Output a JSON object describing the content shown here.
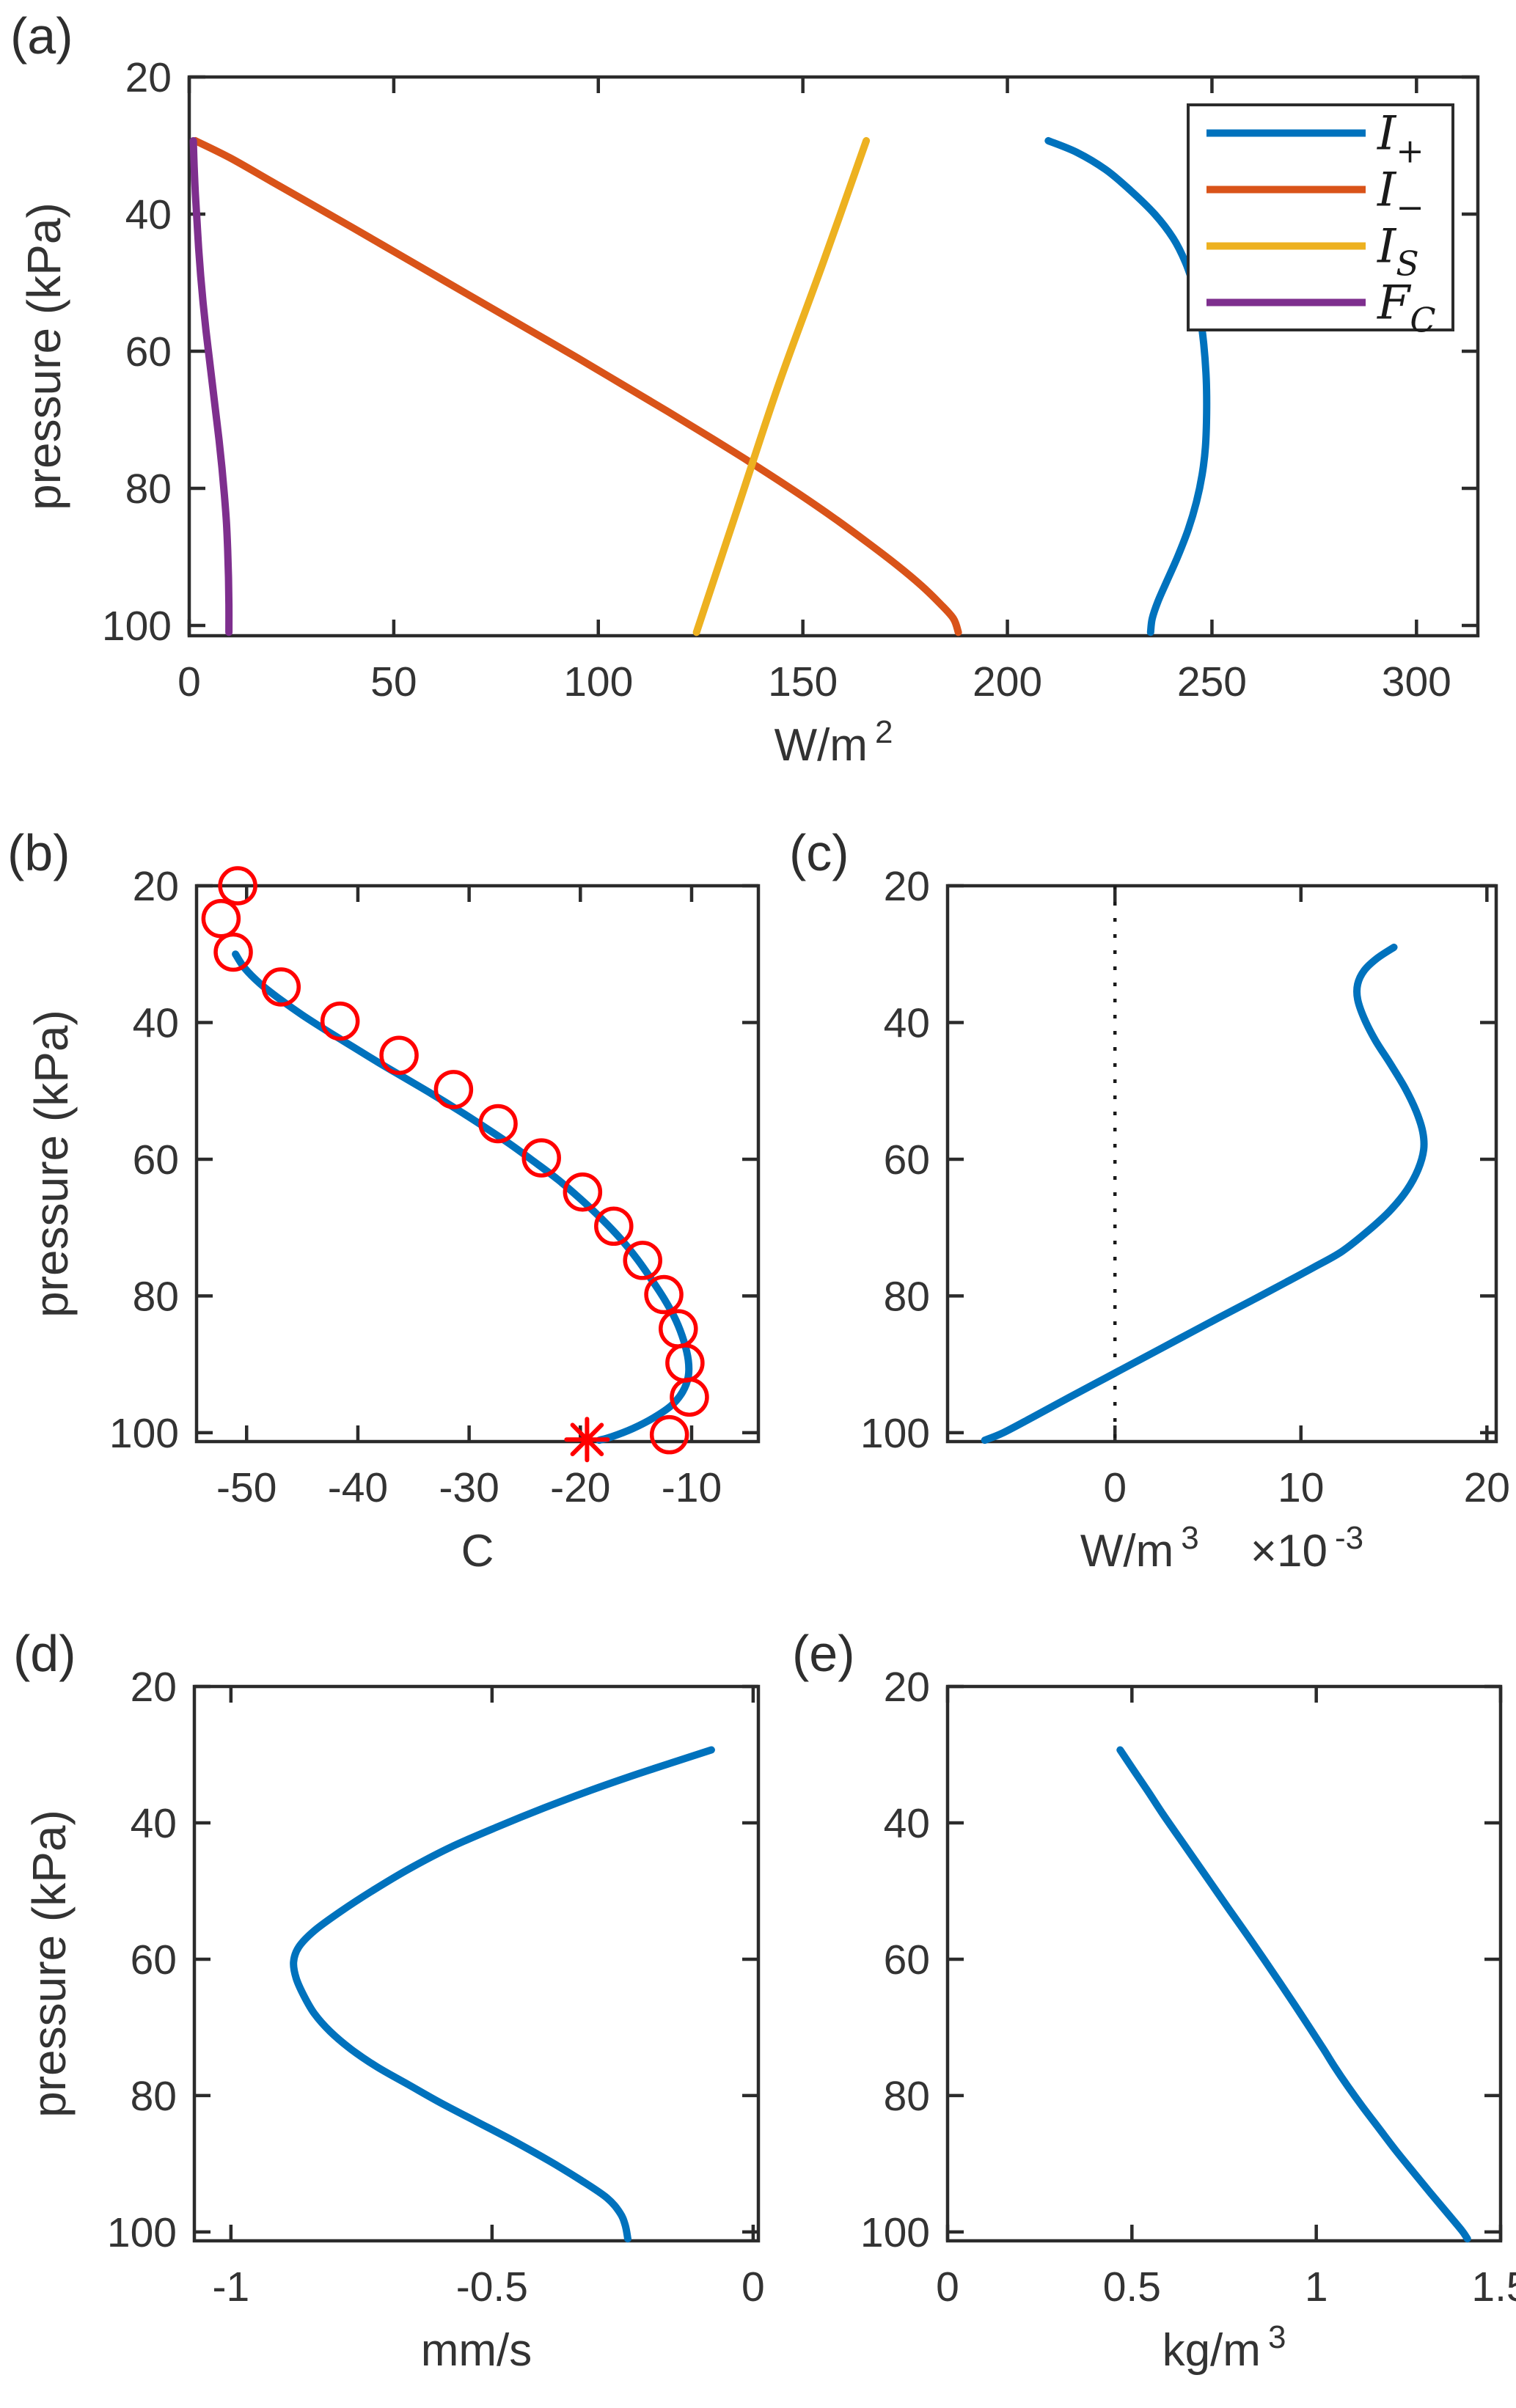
{
  "figure": {
    "background": "#ffffff",
    "axis_color": "#2b2b2b",
    "text_color": "#333333",
    "palette": {
      "blue": "#0072BD",
      "orange": "#D95319",
      "yellow": "#EDB120",
      "purple": "#7E2F8E",
      "red": "#FF0000"
    }
  },
  "chart_data": [
    {
      "id": "a",
      "panel_label": "(a)",
      "type": "line",
      "grid": false,
      "xlabel_parts": [
        {
          "t": "W/m"
        },
        {
          "t": "2",
          "sup": true
        }
      ],
      "ylabel": "pressure (kPa)",
      "xlim": [
        0,
        315
      ],
      "ylim": [
        20,
        101.5
      ],
      "xticks": {
        "values": [
          0,
          50,
          100,
          150,
          200,
          250,
          300
        ],
        "labels": [
          "0",
          "50",
          "100",
          "150",
          "200",
          "250",
          "300"
        ]
      },
      "yticks": {
        "values": [
          20,
          40,
          60,
          80,
          100
        ],
        "labels": [
          "20",
          "40",
          "60",
          "80",
          "100"
        ]
      },
      "legend": {
        "position": "top-right",
        "entries": [
          {
            "label": "I",
            "sub": "+",
            "color": "#0072BD"
          },
          {
            "label": "I",
            "sub": "−",
            "color": "#D95319"
          },
          {
            "label": "I",
            "sub": "S",
            "color": "#EDB120"
          },
          {
            "label": "F",
            "sub": "C",
            "color": "#7E2F8E"
          }
        ]
      },
      "series": [
        {
          "name": "I_plus",
          "color": "#0072BD",
          "points": [
            [
              210,
              29.3
            ],
            [
              217,
              31
            ],
            [
              224,
              33.5
            ],
            [
              230,
              36.5
            ],
            [
              236,
              40
            ],
            [
              240.5,
              43.5
            ],
            [
              243.5,
              47
            ],
            [
              245.5,
              50.5
            ],
            [
              247,
              54.5
            ],
            [
              248,
              59
            ],
            [
              248.6,
              64
            ],
            [
              248.7,
              69
            ],
            [
              248.4,
              74
            ],
            [
              247.6,
              78
            ],
            [
              246.2,
              82
            ],
            [
              244.2,
              86
            ],
            [
              241.6,
              90
            ],
            [
              239,
              93.5
            ],
            [
              236.8,
              96.5
            ],
            [
              235.4,
              99
            ],
            [
              235,
              101
            ]
          ]
        },
        {
          "name": "I_minus",
          "color": "#D95319",
          "points": [
            [
              1.5,
              29.3
            ],
            [
              10,
              31.8
            ],
            [
              20,
              35.2
            ],
            [
              30,
              38.6
            ],
            [
              40,
              42
            ],
            [
              51,
              45.8
            ],
            [
              62,
              49.6
            ],
            [
              73,
              53.4
            ],
            [
              84,
              57.2
            ],
            [
              95,
              61
            ],
            [
              106,
              64.9
            ],
            [
              117,
              68.8
            ],
            [
              128,
              72.8
            ],
            [
              139,
              76.9
            ],
            [
              149,
              80.8
            ],
            [
              158,
              84.5
            ],
            [
              166,
              88
            ],
            [
              173,
              91.2
            ],
            [
              179,
              94.2
            ],
            [
              183.5,
              96.8
            ],
            [
              186.8,
              99
            ],
            [
              188,
              101
            ]
          ]
        },
        {
          "name": "I_S",
          "color": "#EDB120",
          "points": [
            [
              165.5,
              29.3
            ],
            [
              155,
              47
            ],
            [
              144,
              65
            ],
            [
              134,
              83
            ],
            [
              124,
              101
            ]
          ]
        },
        {
          "name": "F_C",
          "color": "#7E2F8E",
          "points": [
            [
              1,
              29.3
            ],
            [
              1.2,
              33
            ],
            [
              1.5,
              37
            ],
            [
              1.9,
              41
            ],
            [
              2.3,
              45
            ],
            [
              2.8,
              49
            ],
            [
              3.4,
              53
            ],
            [
              4.1,
              57
            ],
            [
              4.9,
              61
            ],
            [
              5.7,
              65
            ],
            [
              6.5,
              69
            ],
            [
              7.3,
              73
            ],
            [
              8,
              77
            ],
            [
              8.6,
              81
            ],
            [
              9.1,
              85
            ],
            [
              9.4,
              89
            ],
            [
              9.6,
              93
            ],
            [
              9.7,
              97
            ],
            [
              9.7,
              101
            ]
          ]
        }
      ]
    },
    {
      "id": "b",
      "panel_label": "(b)",
      "type": "line",
      "grid": false,
      "xlabel_parts": [
        {
          "t": "C"
        }
      ],
      "ylabel": "pressure (kPa)",
      "xlim": [
        -54.5,
        -4
      ],
      "ylim": [
        20,
        101.3
      ],
      "xticks": {
        "values": [
          -50,
          -40,
          -30,
          -20,
          -10
        ],
        "labels": [
          "-50",
          "-40",
          "-30",
          "-20",
          "-10"
        ]
      },
      "yticks": {
        "values": [
          20,
          40,
          60,
          80,
          100
        ],
        "labels": [
          "20",
          "40",
          "60",
          "80",
          "100"
        ]
      },
      "series": [
        {
          "name": "model-temperature",
          "color": "#0072BD",
          "points": [
            [
              -51,
              30
            ],
            [
              -50.2,
              32
            ],
            [
              -48.8,
              34.3
            ],
            [
              -47,
              36.6
            ],
            [
              -45,
              38.9
            ],
            [
              -42.8,
              41.2
            ],
            [
              -40.5,
              43.5
            ],
            [
              -38.2,
              45.8
            ],
            [
              -35.8,
              48.1
            ],
            [
              -33.4,
              50.4
            ],
            [
              -31,
              52.8
            ],
            [
              -28.7,
              55.2
            ],
            [
              -26.4,
              57.7
            ],
            [
              -24.2,
              60.3
            ],
            [
              -22,
              63
            ],
            [
              -20,
              65.8
            ],
            [
              -18.1,
              68.7
            ],
            [
              -16.4,
              71.6
            ],
            [
              -14.9,
              74.6
            ],
            [
              -13.6,
              77.6
            ],
            [
              -12.4,
              80.6
            ],
            [
              -11.4,
              83.6
            ],
            [
              -10.7,
              86.6
            ],
            [
              -10.3,
              89.4
            ],
            [
              -10.3,
              91.8
            ],
            [
              -10.8,
              94
            ],
            [
              -11.8,
              96
            ],
            [
              -13.4,
              97.8
            ],
            [
              -15.3,
              99.4
            ],
            [
              -17.2,
              100.6
            ],
            [
              -18.3,
              101.1
            ]
          ]
        },
        {
          "name": "observed-temperature",
          "color": "#FF0000",
          "marker": "circle",
          "points": [
            [
              -50.8,
              20
            ],
            [
              -52.3,
              24.8
            ],
            [
              -51.2,
              29.7
            ],
            [
              -46.9,
              34.8
            ],
            [
              -41.6,
              39.8
            ],
            [
              -36.3,
              44.8
            ],
            [
              -31.4,
              49.8
            ],
            [
              -27.4,
              54.8
            ],
            [
              -23.5,
              59.8
            ],
            [
              -19.8,
              64.8
            ],
            [
              -17,
              69.8
            ],
            [
              -14.4,
              74.8
            ],
            [
              -12.5,
              79.8
            ],
            [
              -11.2,
              84.8
            ],
            [
              -10.6,
              89.8
            ],
            [
              -10.2,
              94.8
            ],
            [
              -12,
              100.3
            ]
          ]
        },
        {
          "name": "surface-point",
          "color": "#FF0000",
          "marker": "asterisk",
          "points": [
            [
              -19.4,
              101
            ]
          ]
        }
      ]
    },
    {
      "id": "c",
      "panel_label": "(c)",
      "type": "line",
      "grid": false,
      "zero_line": true,
      "xlabel_parts": [
        {
          "t": "W/m"
        },
        {
          "t": "3",
          "sup": true
        },
        {
          "t": "×10",
          "gap": 70
        },
        {
          "t": "-3",
          "sup": true
        }
      ],
      "ylabel": null,
      "xlim": [
        -9,
        20.5
      ],
      "ylim": [
        20,
        101.3
      ],
      "xticks": {
        "values": [
          0,
          10,
          20
        ],
        "labels": [
          "0",
          "10",
          "20"
        ]
      },
      "yticks": {
        "values": [
          20,
          40,
          60,
          80,
          100
        ],
        "labels": [
          "20",
          "40",
          "60",
          "80",
          "100"
        ]
      },
      "series": [
        {
          "name": "heating-rate",
          "color": "#0072BD",
          "points": [
            [
              15,
              29
            ],
            [
              14.1,
              30.6
            ],
            [
              13.4,
              32.4
            ],
            [
              13.05,
              34.4
            ],
            [
              13.05,
              36.6
            ],
            [
              13.4,
              39.4
            ],
            [
              14,
              42.6
            ],
            [
              14.8,
              46
            ],
            [
              15.6,
              49.6
            ],
            [
              16.2,
              53
            ],
            [
              16.55,
              56
            ],
            [
              16.6,
              58.6
            ],
            [
              16.3,
              61.5
            ],
            [
              15.7,
              64.5
            ],
            [
              14.8,
              67.5
            ],
            [
              13.6,
              70.5
            ],
            [
              12.2,
              73.5
            ],
            [
              10.7,
              75.8
            ],
            [
              9.2,
              78
            ],
            [
              7.4,
              80.6
            ],
            [
              5.5,
              83.3
            ],
            [
              3.5,
              86.2
            ],
            [
              1.5,
              89.1
            ],
            [
              -0.5,
              92
            ],
            [
              -2.5,
              94.9
            ],
            [
              -4.4,
              97.7
            ],
            [
              -6,
              100
            ],
            [
              -7,
              101.1
            ]
          ]
        }
      ]
    },
    {
      "id": "d",
      "panel_label": "(d)",
      "type": "line",
      "grid": false,
      "xlabel_parts": [
        {
          "t": "mm/s"
        }
      ],
      "ylabel": "pressure (kPa)",
      "xlim": [
        -1.07,
        0.01
      ],
      "ylim": [
        20,
        101.3
      ],
      "xticks": {
        "values": [
          -1,
          -0.5,
          0
        ],
        "labels": [
          "-1",
          "-0.5",
          "0"
        ]
      },
      "yticks": {
        "values": [
          20,
          40,
          60,
          80,
          100
        ],
        "labels": [
          "20",
          "40",
          "60",
          "80",
          "100"
        ]
      },
      "series": [
        {
          "name": "vertical-velocity",
          "color": "#0072BD",
          "points": [
            [
              -0.08,
              29.3
            ],
            [
              -0.14,
              30.8
            ],
            [
              -0.22,
              32.8
            ],
            [
              -0.31,
              35.2
            ],
            [
              -0.4,
              37.8
            ],
            [
              -0.49,
              40.6
            ],
            [
              -0.58,
              43.6
            ],
            [
              -0.66,
              46.8
            ],
            [
              -0.73,
              50
            ],
            [
              -0.79,
              53
            ],
            [
              -0.84,
              55.8
            ],
            [
              -0.87,
              58.2
            ],
            [
              -0.88,
              60.4
            ],
            [
              -0.875,
              62.8
            ],
            [
              -0.86,
              65.4
            ],
            [
              -0.84,
              68
            ],
            [
              -0.81,
              70.6
            ],
            [
              -0.77,
              73.2
            ],
            [
              -0.72,
              75.8
            ],
            [
              -0.66,
              78.4
            ],
            [
              -0.6,
              81
            ],
            [
              -0.53,
              83.8
            ],
            [
              -0.46,
              86.6
            ],
            [
              -0.39,
              89.6
            ],
            [
              -0.33,
              92.4
            ],
            [
              -0.28,
              95
            ],
            [
              -0.255,
              97.2
            ],
            [
              -0.245,
              99
            ],
            [
              -0.24,
              101
            ]
          ]
        }
      ]
    },
    {
      "id": "e",
      "panel_label": "(e)",
      "type": "line",
      "grid": false,
      "xlabel_parts": [
        {
          "t": "kg/m"
        },
        {
          "t": "3",
          "sup": true
        }
      ],
      "ylabel": null,
      "xlim": [
        0,
        1.5
      ],
      "ylim": [
        20,
        101.3
      ],
      "xticks": {
        "values": [
          0,
          0.5,
          1,
          1.5
        ],
        "labels": [
          "0",
          "0.5",
          "1",
          "1.5"
        ]
      },
      "yticks": {
        "values": [
          20,
          40,
          60,
          80,
          100
        ],
        "labels": [
          "20",
          "40",
          "60",
          "80",
          "100"
        ]
      },
      "series": [
        {
          "name": "density",
          "color": "#0072BD",
          "points": [
            [
              0.468,
              29.3
            ],
            [
              0.505,
              32.3
            ],
            [
              0.545,
              35.5
            ],
            [
              0.585,
              38.8
            ],
            [
              0.63,
              42.3
            ],
            [
              0.675,
              45.8
            ],
            [
              0.72,
              49.3
            ],
            [
              0.765,
              52.8
            ],
            [
              0.812,
              56.4
            ],
            [
              0.858,
              60
            ],
            [
              0.902,
              63.5
            ],
            [
              0.944,
              66.9
            ],
            [
              0.984,
              70.2
            ],
            [
              1.02,
              73.2
            ],
            [
              1.05,
              75.8
            ],
            [
              1.085,
              78.6
            ],
            [
              1.125,
              81.6
            ],
            [
              1.17,
              84.8
            ],
            [
              1.215,
              88
            ],
            [
              1.263,
              91.2
            ],
            [
              1.31,
              94.3
            ],
            [
              1.355,
              97.2
            ],
            [
              1.395,
              99.8
            ],
            [
              1.41,
              101
            ]
          ]
        }
      ]
    }
  ]
}
